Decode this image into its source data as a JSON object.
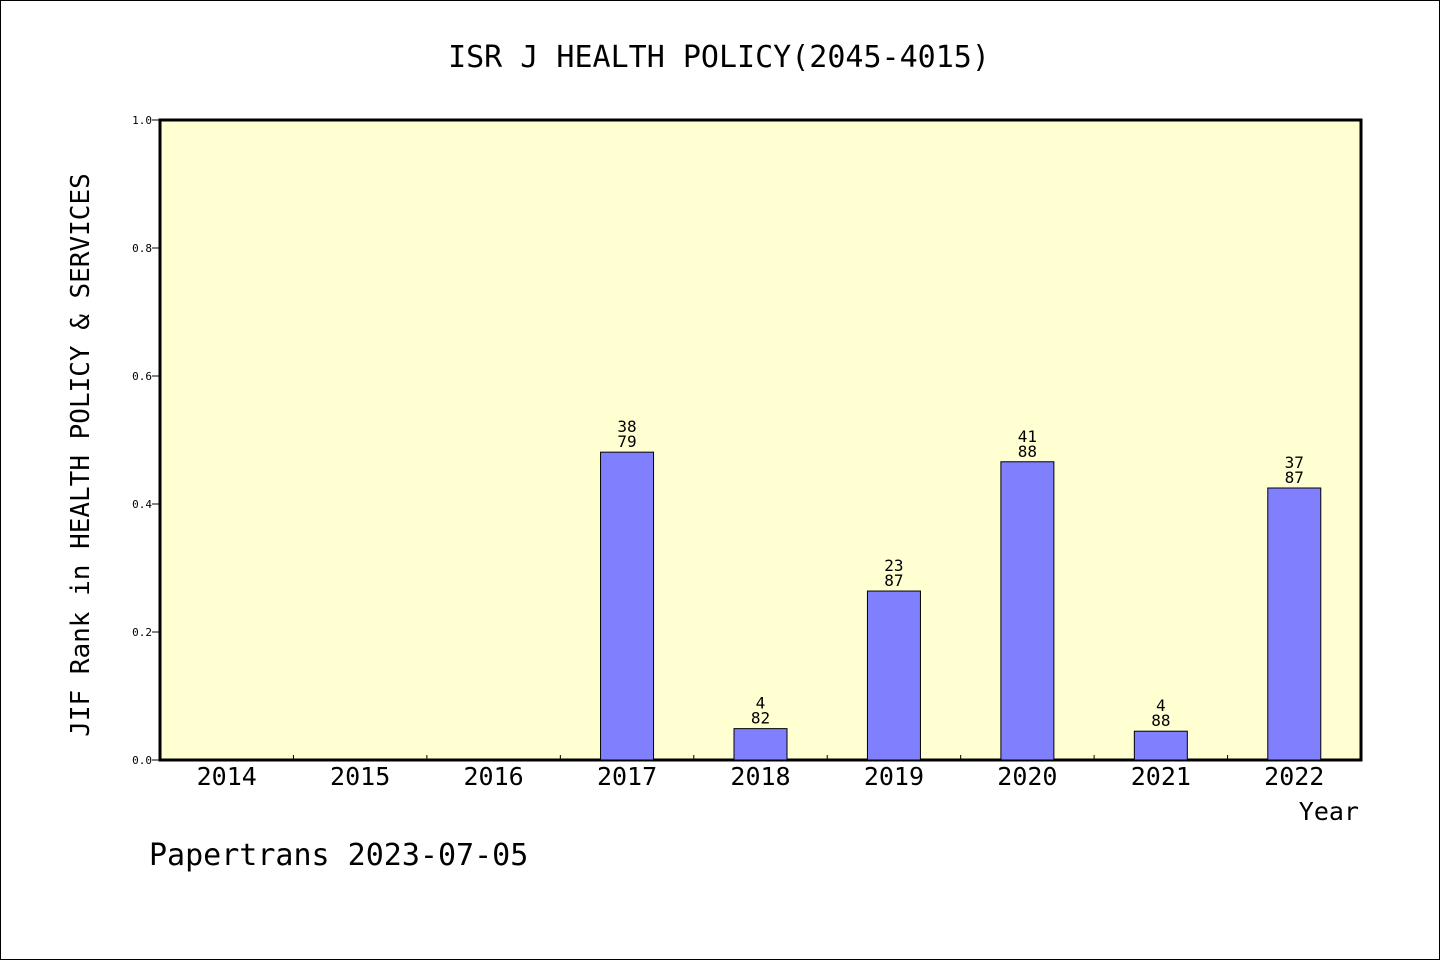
{
  "colors": {
    "plot_background": "#ffffd2",
    "bar_fill": "#8080ff",
    "bar_stroke": "#000000",
    "axis": "#000000"
  },
  "footer": "Papertrans 2023-07-05",
  "chart_data": {
    "type": "bar",
    "title": "ISR J HEALTH POLICY(2045-4015)",
    "xlabel": "Year",
    "ylabel": "JIF Rank in HEALTH POLICY & SERVICES",
    "categories": [
      "2014",
      "2015",
      "2016",
      "2017",
      "2018",
      "2019",
      "2020",
      "2021",
      "2022"
    ],
    "values": [
      null,
      null,
      null,
      0.481,
      0.049,
      0.264,
      0.466,
      0.045,
      0.425
    ],
    "rank": [
      null,
      null,
      null,
      "38",
      "4",
      "23",
      "41",
      "4",
      "37"
    ],
    "total": [
      null,
      null,
      null,
      "79",
      "82",
      "87",
      "88",
      "88",
      "87"
    ],
    "ylim": [
      0,
      1.0
    ],
    "yticks": [
      "0.0",
      "0.2",
      "0.4",
      "0.6",
      "0.8",
      "1.0"
    ],
    "grid": false,
    "legend": "none"
  }
}
